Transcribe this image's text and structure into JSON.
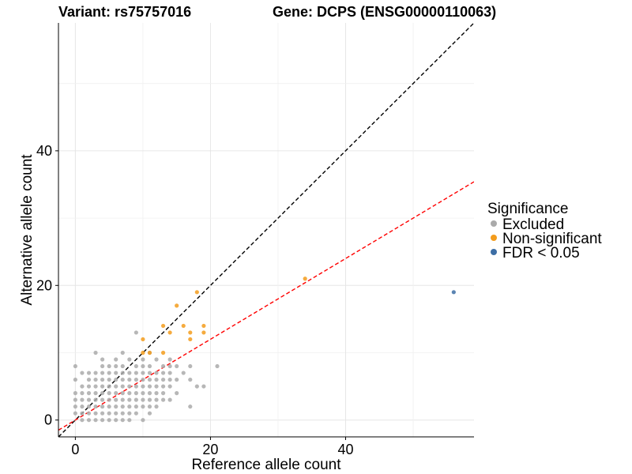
{
  "chart_data": {
    "type": "scatter",
    "title_left": "Variant: rs75757016",
    "title_right": "Gene: DCPS (ENSG00000110063)",
    "xlabel": "Reference allele count",
    "ylabel": "Alternative allele count",
    "xlim": [
      -2.5,
      59
    ],
    "ylim": [
      -2.5,
      59
    ],
    "x_ticks": [
      0,
      20,
      40
    ],
    "y_ticks": [
      0,
      20,
      40
    ],
    "grid": true,
    "legend": {
      "title": "Significance",
      "position": "right",
      "entries": [
        {
          "label": "Excluded",
          "color": "#aaaaaa"
        },
        {
          "label": "Non-significant",
          "color": "#f39c1c"
        },
        {
          "label": "FDR < 0.05",
          "color": "#3d6ea5"
        }
      ]
    },
    "reference_lines": [
      {
        "name": "identity",
        "slope": 1,
        "intercept": 0,
        "color": "#000000",
        "dash": "dashed"
      },
      {
        "name": "fit",
        "slope": 0.6,
        "intercept": 0,
        "color": "#ff0000",
        "dash": "dashed"
      }
    ],
    "series": [
      {
        "name": "Excluded",
        "color": "#aaaaaa",
        "points": [
          [
            0,
            8
          ],
          [
            0,
            6
          ],
          [
            0,
            4
          ],
          [
            0,
            3
          ],
          [
            0,
            2
          ],
          [
            0,
            1
          ],
          [
            1,
            7
          ],
          [
            1,
            5
          ],
          [
            1,
            4
          ],
          [
            1,
            3
          ],
          [
            1,
            2
          ],
          [
            1,
            1
          ],
          [
            1,
            0
          ],
          [
            2,
            7
          ],
          [
            2,
            6
          ],
          [
            2,
            5
          ],
          [
            2,
            4
          ],
          [
            2,
            3
          ],
          [
            2,
            2
          ],
          [
            2,
            1
          ],
          [
            2,
            0
          ],
          [
            3,
            10
          ],
          [
            3,
            7
          ],
          [
            3,
            6
          ],
          [
            3,
            5
          ],
          [
            3,
            4
          ],
          [
            3,
            3
          ],
          [
            3,
            2
          ],
          [
            3,
            1
          ],
          [
            3,
            0
          ],
          [
            4,
            9
          ],
          [
            4,
            8
          ],
          [
            4,
            7
          ],
          [
            4,
            6
          ],
          [
            4,
            5
          ],
          [
            4,
            4
          ],
          [
            4,
            3
          ],
          [
            4,
            2
          ],
          [
            4,
            1
          ],
          [
            4,
            0
          ],
          [
            5,
            8
          ],
          [
            5,
            7
          ],
          [
            5,
            6
          ],
          [
            5,
            5
          ],
          [
            5,
            4
          ],
          [
            5,
            3
          ],
          [
            5,
            2
          ],
          [
            5,
            1
          ],
          [
            5,
            0
          ],
          [
            6,
            9
          ],
          [
            6,
            8
          ],
          [
            6,
            7
          ],
          [
            6,
            6
          ],
          [
            6,
            5
          ],
          [
            6,
            4
          ],
          [
            6,
            3
          ],
          [
            6,
            2
          ],
          [
            6,
            1
          ],
          [
            6,
            0
          ],
          [
            7,
            10
          ],
          [
            7,
            8
          ],
          [
            7,
            7
          ],
          [
            7,
            6
          ],
          [
            7,
            5
          ],
          [
            7,
            4
          ],
          [
            7,
            3
          ],
          [
            7,
            2
          ],
          [
            7,
            1
          ],
          [
            7,
            0
          ],
          [
            8,
            9
          ],
          [
            8,
            7
          ],
          [
            8,
            6
          ],
          [
            8,
            5
          ],
          [
            8,
            4
          ],
          [
            8,
            3
          ],
          [
            8,
            2
          ],
          [
            8,
            1
          ],
          [
            8,
            0
          ],
          [
            9,
            13
          ],
          [
            9,
            8
          ],
          [
            9,
            7
          ],
          [
            9,
            6
          ],
          [
            9,
            5
          ],
          [
            9,
            4
          ],
          [
            9,
            3
          ],
          [
            9,
            2
          ],
          [
            9,
            1
          ],
          [
            10,
            9
          ],
          [
            10,
            8
          ],
          [
            10,
            7
          ],
          [
            10,
            6
          ],
          [
            10,
            5
          ],
          [
            10,
            4
          ],
          [
            10,
            3
          ],
          [
            10,
            2
          ],
          [
            10,
            0
          ],
          [
            11,
            10
          ],
          [
            11,
            8
          ],
          [
            11,
            7
          ],
          [
            11,
            6
          ],
          [
            11,
            5
          ],
          [
            11,
            4
          ],
          [
            11,
            3
          ],
          [
            11,
            2
          ],
          [
            11,
            1
          ],
          [
            12,
            9
          ],
          [
            12,
            7
          ],
          [
            12,
            6
          ],
          [
            12,
            5
          ],
          [
            12,
            4
          ],
          [
            12,
            3
          ],
          [
            12,
            2
          ],
          [
            13,
            8
          ],
          [
            13,
            7
          ],
          [
            13,
            6
          ],
          [
            13,
            5
          ],
          [
            13,
            4
          ],
          [
            13,
            3
          ],
          [
            14,
            9
          ],
          [
            14,
            8
          ],
          [
            14,
            7
          ],
          [
            14,
            6
          ],
          [
            14,
            5
          ],
          [
            14,
            3
          ],
          [
            15,
            8
          ],
          [
            15,
            6
          ],
          [
            15,
            4
          ],
          [
            16,
            7
          ],
          [
            17,
            8
          ],
          [
            17,
            6
          ],
          [
            17,
            2
          ],
          [
            18,
            5
          ],
          [
            19,
            5
          ],
          [
            21,
            8
          ]
        ]
      },
      {
        "name": "Non-significant",
        "color": "#f39c1c",
        "points": [
          [
            10,
            12
          ],
          [
            10,
            10
          ],
          [
            11,
            10
          ],
          [
            13,
            14
          ],
          [
            13,
            10
          ],
          [
            14,
            13
          ],
          [
            15,
            17
          ],
          [
            16,
            14
          ],
          [
            17,
            13
          ],
          [
            17,
            12
          ],
          [
            18,
            19
          ],
          [
            19,
            14
          ],
          [
            19,
            13
          ],
          [
            34,
            21
          ]
        ]
      },
      {
        "name": "FDR < 0.05",
        "color": "#3d6ea5",
        "points": [
          [
            56,
            19
          ]
        ]
      }
    ]
  }
}
